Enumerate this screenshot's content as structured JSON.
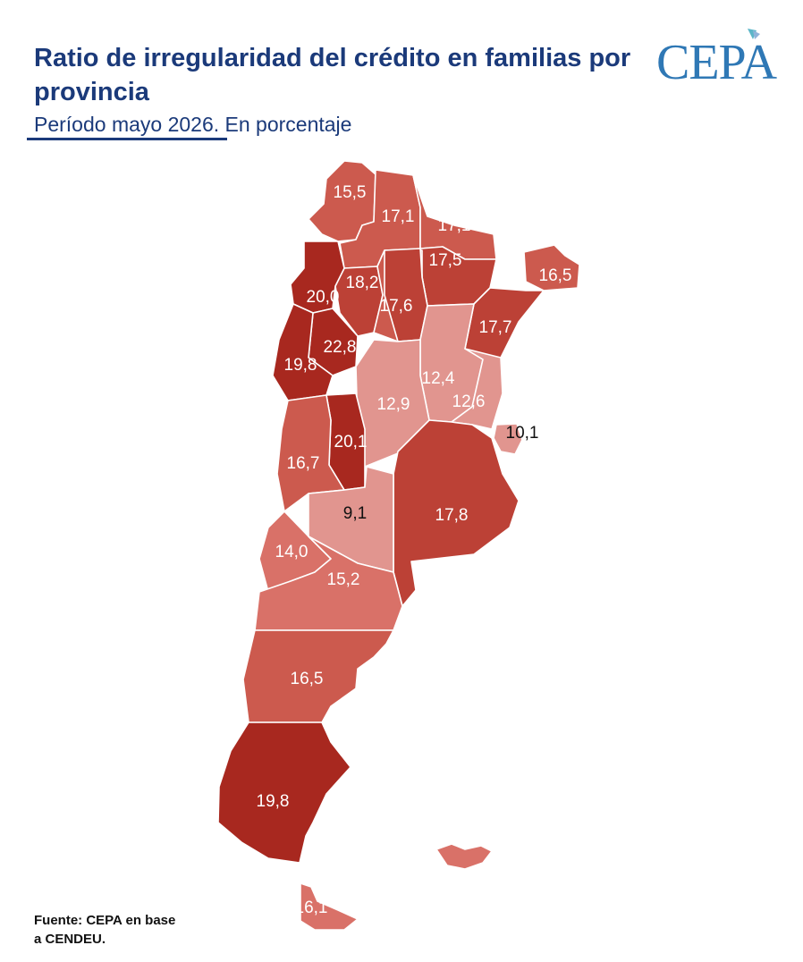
{
  "header": {
    "title": "Ratio de irregularidad del crédito en familias por provincia",
    "subtitle_underlined": "Período mayo 2026",
    "subtitle_rest": ". En porcentaje",
    "logo": "CEPA"
  },
  "footer": {
    "source_line1": "Fuente: CEPA en base",
    "source_line2": "a CENDEU."
  },
  "colors": {
    "darkest": "#a8281f",
    "dark": "#bc4136",
    "medium": "#cc5a4e",
    "light": "#d97168",
    "lightest": "#e1958f",
    "title": "#1b3a7a",
    "logo": "#2f78b5"
  },
  "map_data": {
    "unit": "%",
    "values": {
      "v1": "15,5",
      "v2": "17,1",
      "v3": "17,1",
      "v4": "17,5",
      "v5": "16,5",
      "v6": "18,2",
      "v7": "20,0",
      "v8": "17,6",
      "v9": "17,7",
      "v10": "22,8",
      "v11": "19,8",
      "v12": "12,4",
      "v13": "12,9",
      "v14": "12,6",
      "v15": "10,1",
      "v16": "20,1",
      "v17": "16,7",
      "v18": "17,8",
      "v19": "9,1",
      "v20": "14,0",
      "v21": "15,2",
      "v22": "16,5",
      "v23": "19,8",
      "v24": "16,1"
    }
  }
}
